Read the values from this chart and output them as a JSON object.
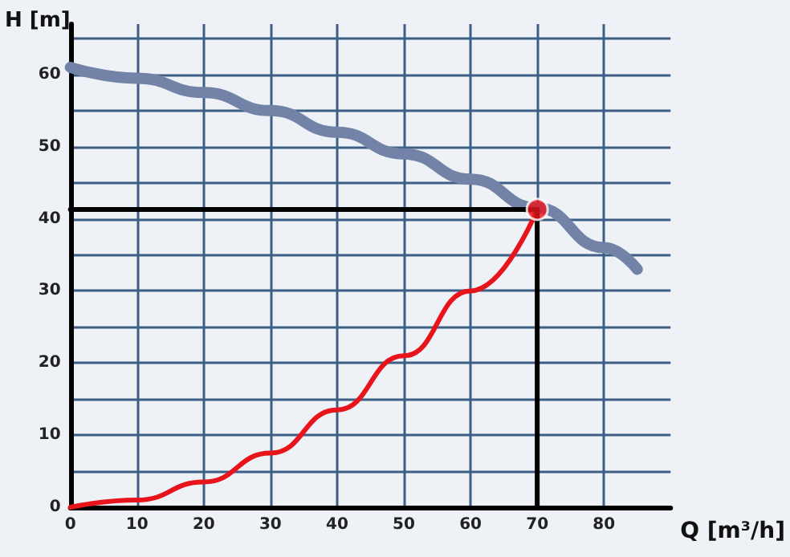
{
  "chart_data": {
    "type": "line",
    "xlabel": "Q [m³/h]",
    "ylabel": "H [m]",
    "xlim": [
      0,
      90
    ],
    "xticks": [
      0,
      10,
      20,
      30,
      40,
      50,
      60,
      70,
      80
    ],
    "ylim": [
      0,
      67
    ],
    "yticks": [
      0,
      {
        "value": 5,
        "label": null
      },
      10,
      {
        "value": 15,
        "label": null
      },
      20,
      {
        "value": 25,
        "label": null
      },
      30,
      {
        "value": 35,
        "label": null
      },
      40,
      {
        "value": 45,
        "label": null
      },
      50,
      {
        "value": 55,
        "label": null
      },
      60,
      {
        "value": 65,
        "label": null
      }
    ],
    "grid": true,
    "marker": "none",
    "line_style": "solid",
    "series": [
      {
        "color": "#7383a8",
        "x": [
          0,
          10,
          20,
          30,
          40,
          50,
          60,
          70,
          80,
          85
        ],
        "values": [
          61,
          59.5,
          57.5,
          55,
          52,
          49,
          45.5,
          41.5,
          36,
          33
        ]
      },
      {
        "color": "#e8141b",
        "x": [
          0,
          10,
          20,
          30,
          40,
          50,
          60,
          70
        ],
        "values": [
          0,
          1,
          3.5,
          7.5,
          13.5,
          21,
          30,
          41.3
        ]
      },
      {
        "color": "#000000",
        "x": [
          0,
          70,
          70
        ],
        "values": [
          41.3,
          41.3,
          0
        ]
      },
      {
        "type": "scatter",
        "marker": "circle",
        "color": "#e8141b",
        "x": [
          70
        ],
        "values": [
          41.3
        ]
      }
    ]
  }
}
